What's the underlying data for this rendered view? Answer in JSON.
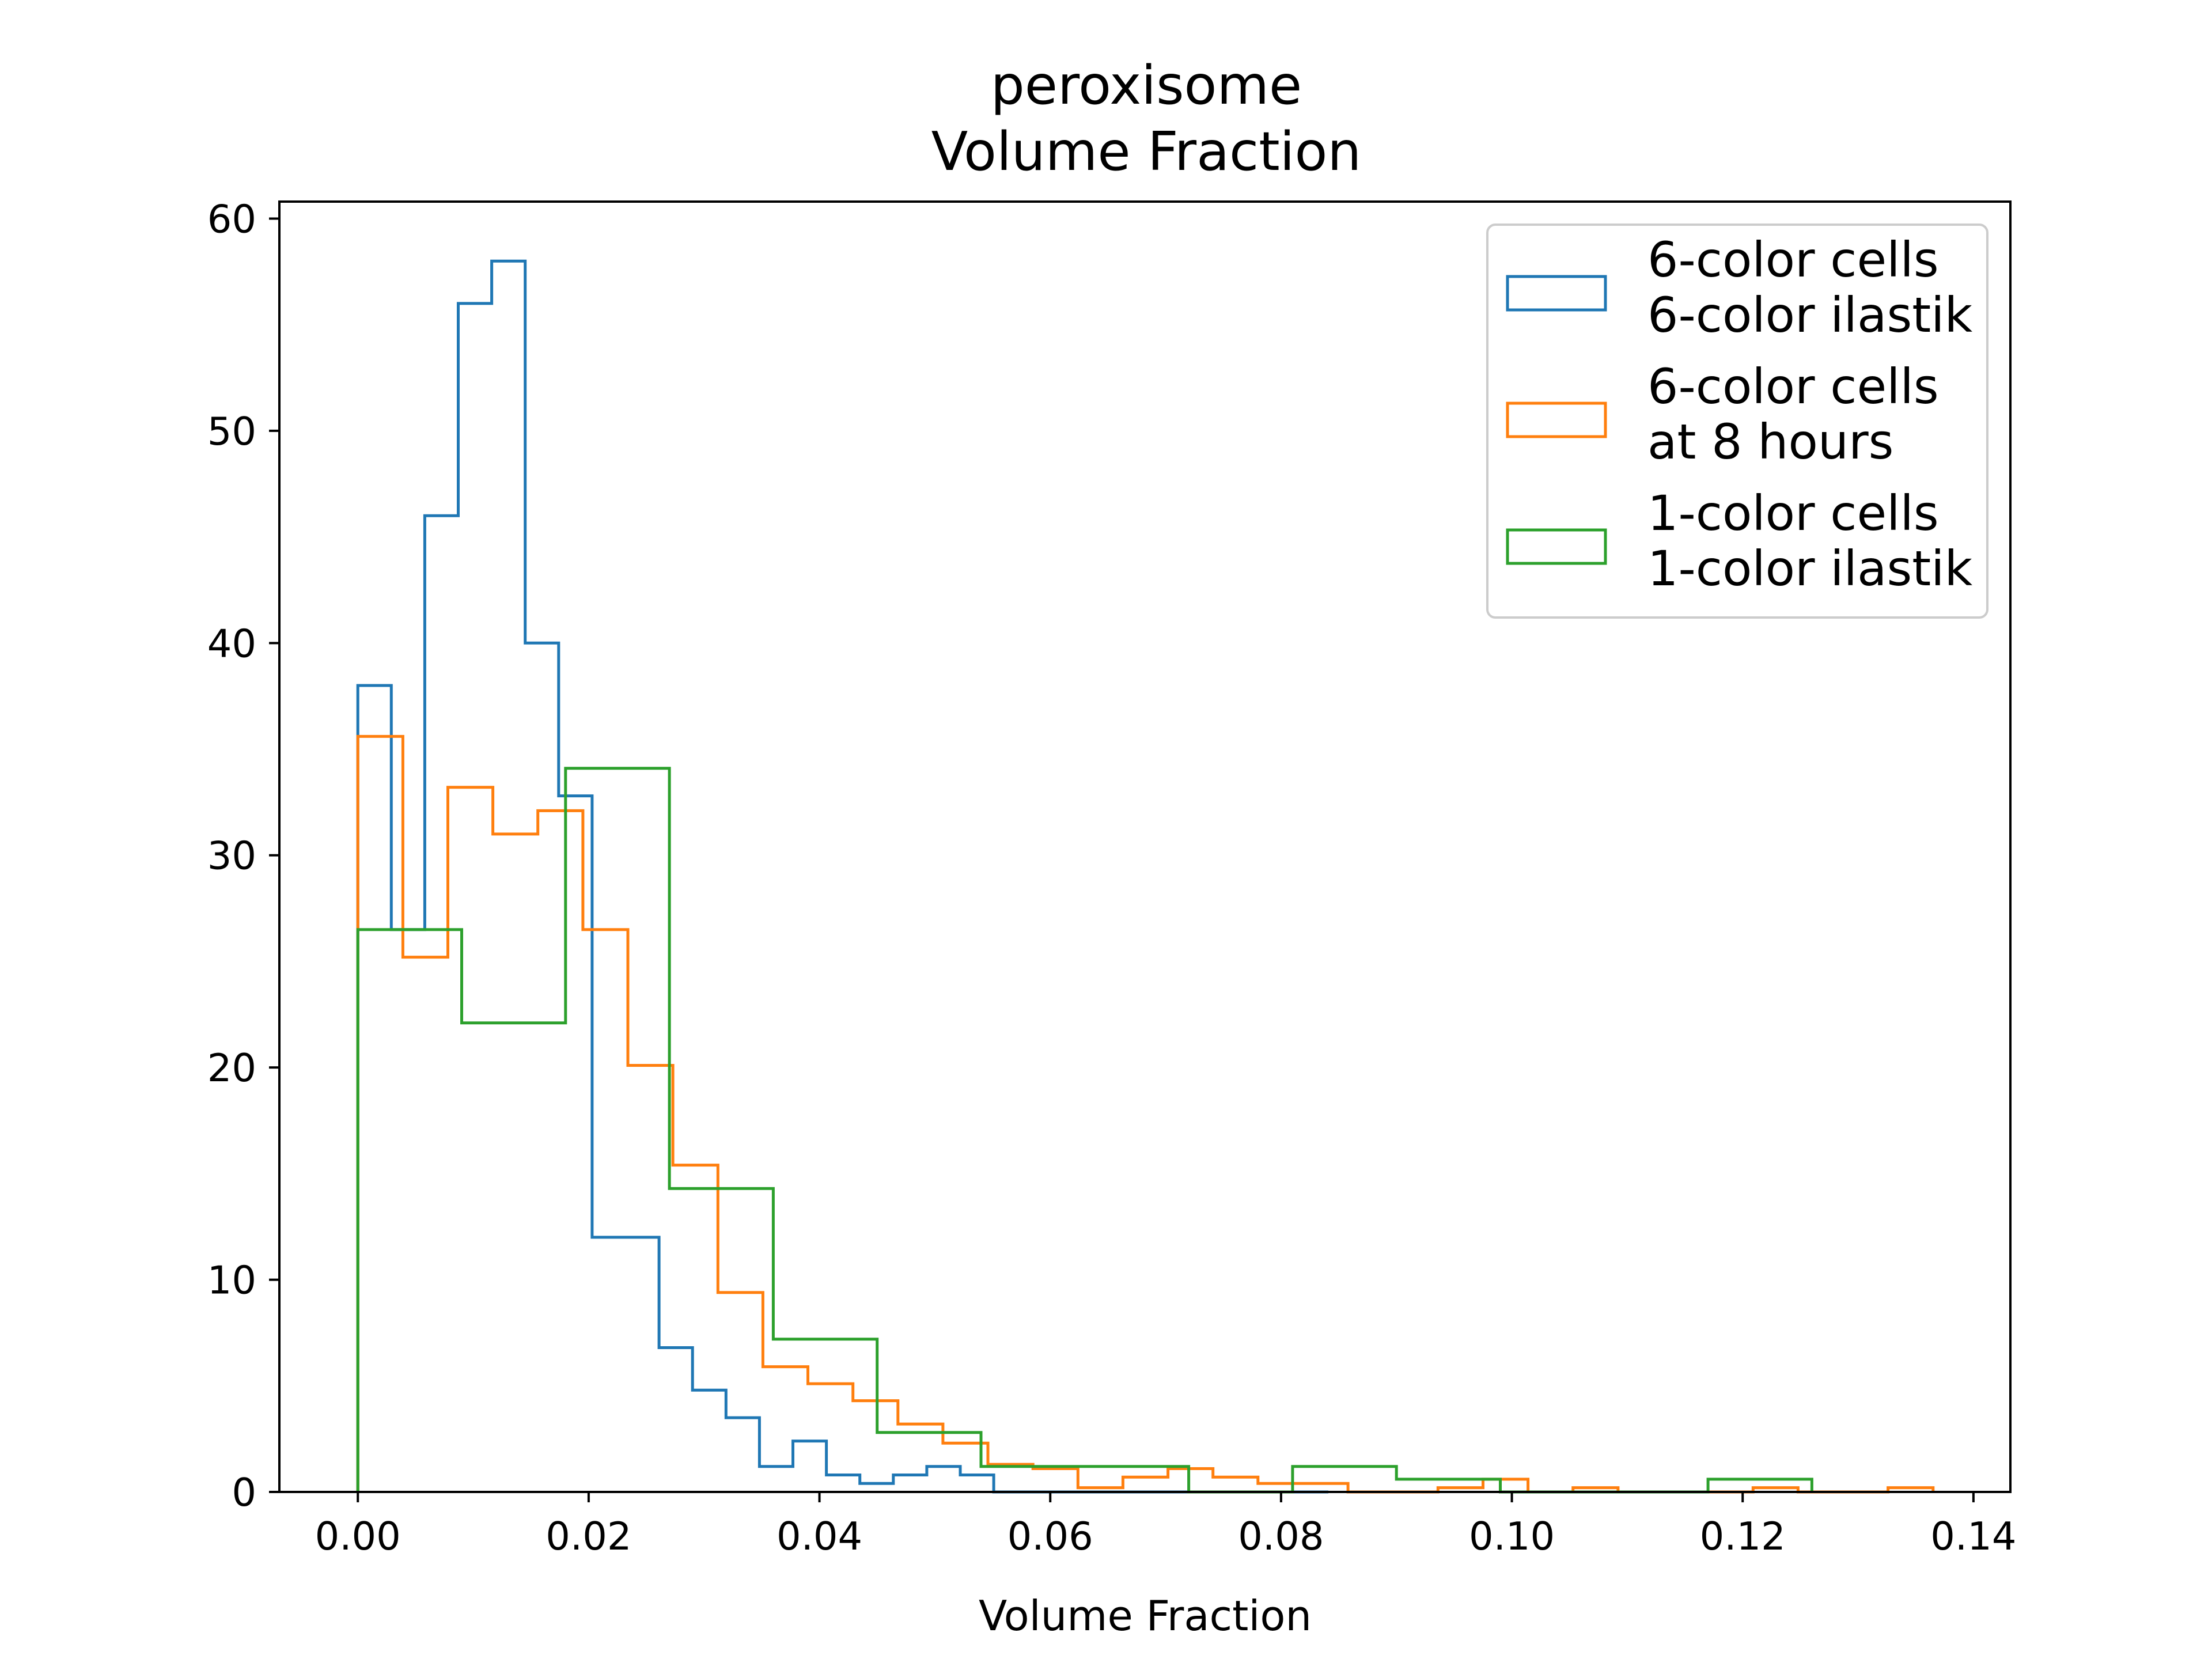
{
  "chart_data": {
    "type": "histogram",
    "title_lines": [
      "peroxisome",
      "Volume Fraction"
    ],
    "xlabel": "Volume Fraction",
    "ylabel": "",
    "xlim": [
      -0.0068,
      0.1432
    ],
    "ylim": [
      0,
      60.8
    ],
    "xticks": [
      0.0,
      0.02,
      0.04,
      0.06,
      0.08,
      0.1,
      0.12,
      0.14
    ],
    "xtick_labels": [
      "0.00",
      "0.02",
      "0.04",
      "0.06",
      "0.08",
      "0.10",
      "0.12",
      "0.14"
    ],
    "yticks": [
      0,
      10,
      20,
      30,
      40,
      50,
      60
    ],
    "ytick_labels": [
      "0",
      "10",
      "20",
      "30",
      "40",
      "50",
      "60"
    ],
    "legend_position": "upper right",
    "grid": false,
    "series": [
      {
        "name_lines": [
          "6-color cells",
          "6-color ilastik"
        ],
        "color": "#1f77b4",
        "bin_edges": [
          0.0,
          0.0029,
          0.0058,
          0.0087,
          0.0116,
          0.0145,
          0.0174,
          0.0203,
          0.0232,
          0.0261,
          0.029,
          0.0319,
          0.0348,
          0.0377,
          0.0406,
          0.0435,
          0.0464,
          0.0493,
          0.0522,
          0.0551,
          0.058,
          0.0609,
          0.0638,
          0.0667,
          0.0696,
          0.0725,
          0.0754,
          0.0783,
          0.0812,
          0.0841
        ],
        "counts": [
          38,
          26.5,
          46,
          56,
          58,
          40,
          32.8,
          12,
          12,
          6.8,
          4.8,
          3.5,
          1.2,
          2.4,
          0.8,
          0.4,
          0.8,
          1.2,
          0.8,
          0,
          0,
          0,
          0,
          0,
          0,
          0,
          0,
          0,
          0
        ]
      },
      {
        "name_lines": [
          "6-color cells",
          " at 8 hours"
        ],
        "color": "#ff7f0e",
        "bin_edges": [
          0.0,
          0.0039,
          0.0078,
          0.0117,
          0.0156,
          0.0195,
          0.0234,
          0.0273,
          0.0312,
          0.0351,
          0.039,
          0.0429,
          0.0468,
          0.0507,
          0.0546,
          0.0585,
          0.0624,
          0.0663,
          0.0702,
          0.0741,
          0.078,
          0.0819,
          0.0858,
          0.0897,
          0.0936,
          0.0975,
          0.1014,
          0.1053,
          0.1092,
          0.1131,
          0.117,
          0.1209,
          0.1248,
          0.1287,
          0.1326,
          0.1365
        ],
        "counts": [
          35.6,
          25.2,
          33.2,
          31,
          32.1,
          26.5,
          20.1,
          15.4,
          9.4,
          5.9,
          5.1,
          4.3,
          3.2,
          2.3,
          1.3,
          1.1,
          0.2,
          0.7,
          1.1,
          0.7,
          0.4,
          0.4,
          0,
          0,
          0.2,
          0.6,
          0,
          0.2,
          0,
          0,
          0,
          0.2,
          0,
          0,
          0.2
        ]
      },
      {
        "name_lines": [
          "1-color cells",
          "1-color ilastik"
        ],
        "color": "#2ca02c",
        "bin_edges": [
          0.0,
          0.009,
          0.018,
          0.027,
          0.036,
          0.045,
          0.054,
          0.063,
          0.072,
          0.081,
          0.09,
          0.099,
          0.108,
          0.117,
          0.126
        ],
        "counts": [
          26.5,
          22.1,
          34.1,
          14.3,
          7.2,
          2.8,
          1.2,
          1.2,
          0,
          1.2,
          0.6,
          0,
          0,
          0.6
        ]
      }
    ]
  }
}
